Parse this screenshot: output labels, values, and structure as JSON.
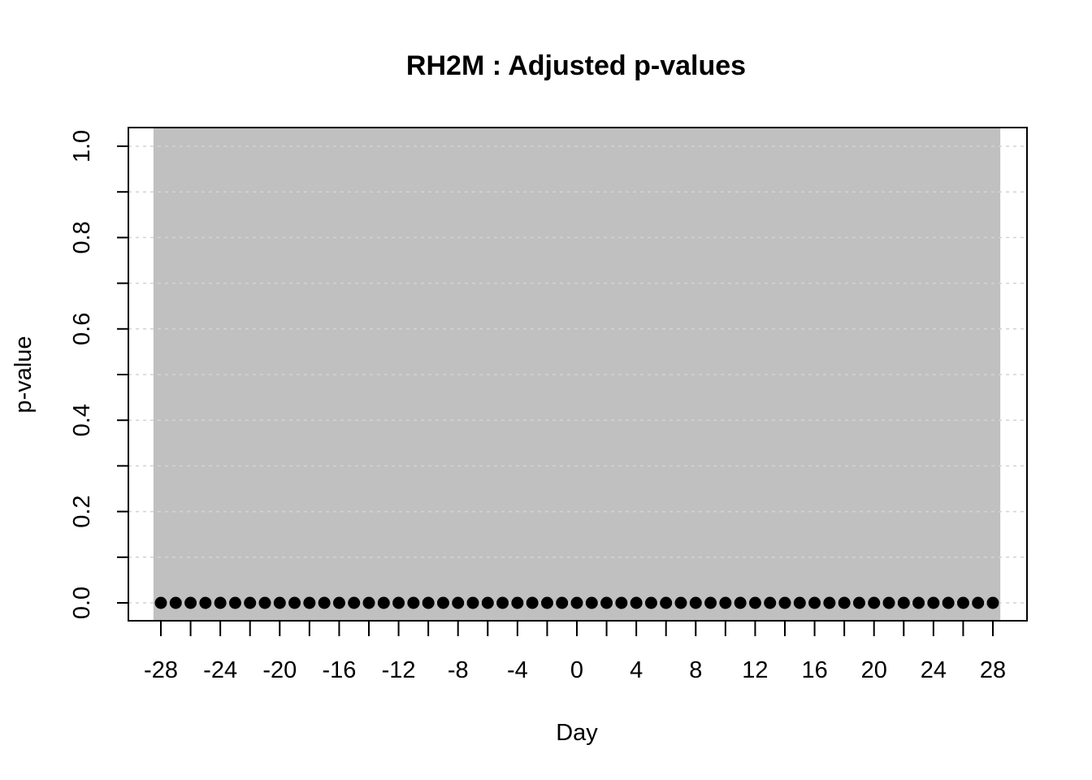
{
  "chart_data": {
    "type": "scatter",
    "title": "RH2M : Adjusted p-values",
    "xlabel": "Day",
    "ylabel": "p-value",
    "xlim": [
      -28.5,
      28.5
    ],
    "ylim": [
      0,
      1
    ],
    "x_ticks": [
      -28,
      -26,
      -24,
      -22,
      -20,
      -18,
      -16,
      -14,
      -12,
      -10,
      -8,
      -6,
      -4,
      -2,
      0,
      2,
      4,
      6,
      8,
      10,
      12,
      14,
      16,
      18,
      20,
      22,
      24,
      26,
      28
    ],
    "x_tick_labels": [
      "-28",
      "-24",
      "-20",
      "-16",
      "-12",
      "-8",
      "-4",
      "0",
      "4",
      "8",
      "12",
      "16",
      "20",
      "24",
      "28"
    ],
    "y_ticks": [
      0,
      0.2,
      0.4,
      0.6,
      0.8,
      1.0
    ],
    "y_tick_labels": [
      "0.0",
      "0.2",
      "0.4",
      "0.6",
      "0.8",
      "1.0"
    ],
    "grid": true,
    "shaded_region": {
      "x_from": -28.5,
      "x_to": 28.5,
      "color": "#c0c0c0"
    },
    "series": [
      {
        "point_color": "#000000",
        "x": [
          -28,
          -27,
          -26,
          -25,
          -24,
          -23,
          -22,
          -21,
          -20,
          -19,
          -18,
          -17,
          -16,
          -15,
          -14,
          -13,
          -12,
          -11,
          -10,
          -9,
          -8,
          -7,
          -6,
          -5,
          -4,
          -3,
          -2,
          -1,
          0,
          1,
          2,
          3,
          4,
          5,
          6,
          7,
          8,
          9,
          10,
          11,
          12,
          13,
          14,
          15,
          16,
          17,
          18,
          19,
          20,
          21,
          22,
          23,
          24,
          25,
          26,
          27,
          28
        ],
        "y": [
          0,
          0,
          0,
          0,
          0,
          0,
          0,
          0,
          0,
          0,
          0,
          0,
          0,
          0,
          0,
          0,
          0,
          0,
          0,
          0,
          0,
          0,
          0,
          0,
          0,
          0,
          0,
          0,
          0,
          0,
          0,
          0,
          0,
          0,
          0,
          0,
          0,
          0,
          0,
          0,
          0,
          0,
          0,
          0,
          0,
          0,
          0,
          0,
          0,
          0,
          0,
          0,
          0,
          0,
          0,
          0,
          0
        ]
      }
    ]
  }
}
